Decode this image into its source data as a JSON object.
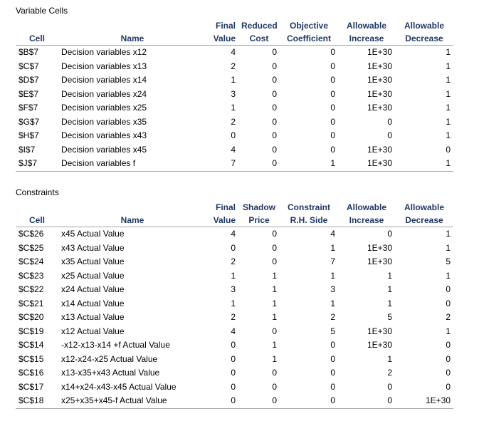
{
  "variable_cells": {
    "title": "Variable Cells",
    "headers_top": [
      "",
      "",
      "Final",
      "Reduced",
      "Objective",
      "Allowable",
      "Allowable"
    ],
    "headers_bottom": [
      "Cell",
      "Name",
      "Value",
      "Cost",
      "Coefficient",
      "Increase",
      "Decrease"
    ],
    "rows": [
      [
        "$B$7",
        "Decision variables x12",
        "4",
        "0",
        "0",
        "1E+30",
        "1"
      ],
      [
        "$C$7",
        "Decision variables x13",
        "2",
        "0",
        "0",
        "1E+30",
        "1"
      ],
      [
        "$D$7",
        "Decision variables x14",
        "1",
        "0",
        "0",
        "1E+30",
        "1"
      ],
      [
        "$E$7",
        "Decision variables x24",
        "3",
        "0",
        "0",
        "1E+30",
        "1"
      ],
      [
        "$F$7",
        "Decision variables x25",
        "1",
        "0",
        "0",
        "1E+30",
        "1"
      ],
      [
        "$G$7",
        "Decision variables x35",
        "2",
        "0",
        "0",
        "0",
        "1"
      ],
      [
        "$H$7",
        "Decision variables x43",
        "0",
        "0",
        "0",
        "0",
        "1"
      ],
      [
        "$I$7",
        "Decision variables x45",
        "4",
        "0",
        "0",
        "1E+30",
        "0"
      ],
      [
        "$J$7",
        "Decision variables f",
        "7",
        "0",
        "1",
        "1E+30",
        "1"
      ]
    ]
  },
  "constraints": {
    "title": "Constraints",
    "headers_top": [
      "",
      "",
      "Final",
      "Shadow",
      "Constraint",
      "Allowable",
      "Allowable"
    ],
    "headers_bottom": [
      "Cell",
      "Name",
      "Value",
      "Price",
      "R.H. Side",
      "Increase",
      "Decrease"
    ],
    "rows": [
      [
        "$C$26",
        "x45 Actual Value",
        "4",
        "0",
        "4",
        "0",
        "1"
      ],
      [
        "$C$25",
        "x43 Actual Value",
        "0",
        "0",
        "1",
        "1E+30",
        "1"
      ],
      [
        "$C$24",
        "x35 Actual Value",
        "2",
        "0",
        "7",
        "1E+30",
        "5"
      ],
      [
        "$C$23",
        "x25 Actual Value",
        "1",
        "1",
        "1",
        "1",
        "1"
      ],
      [
        "$C$22",
        "x24 Actual Value",
        "3",
        "1",
        "3",
        "1",
        "0"
      ],
      [
        "$C$21",
        "x14 Actual Value",
        "1",
        "1",
        "1",
        "1",
        "0"
      ],
      [
        "$C$20",
        "x13 Actual Value",
        "2",
        "1",
        "2",
        "5",
        "2"
      ],
      [
        "$C$19",
        "x12 Actual Value",
        "4",
        "0",
        "5",
        "1E+30",
        "1"
      ],
      [
        "$C$14",
        "-x12-x13-x14 +f Actual Value",
        "0",
        "1",
        "0",
        "1E+30",
        "0"
      ],
      [
        "$C$15",
        "x12-x24-x25 Actual Value",
        "0",
        "1",
        "0",
        "1",
        "0"
      ],
      [
        "$C$16",
        "x13-x35+x43 Actual Value",
        "0",
        "0",
        "0",
        "2",
        "0"
      ],
      [
        "$C$17",
        "x14+x24-x43-x45 Actual Value",
        "0",
        "0",
        "0",
        "0",
        "0"
      ],
      [
        "$C$18",
        "x25+x35+x45-f Actual Value",
        "0",
        "0",
        "0",
        "0",
        "1E+30"
      ]
    ]
  }
}
